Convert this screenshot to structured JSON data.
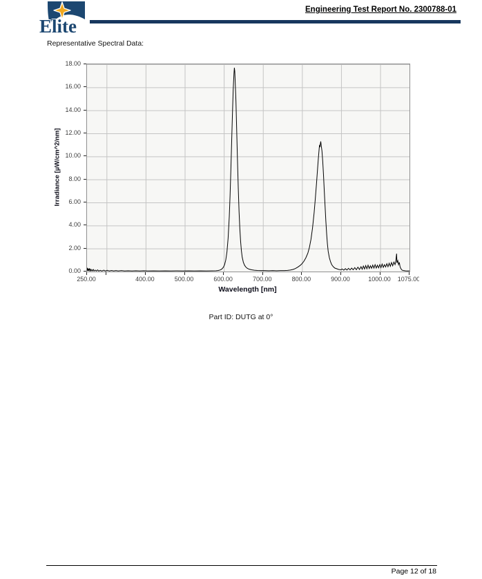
{
  "header": {
    "logo_text": "Elite",
    "report_title": "Engineering Test Report No. 2300788-01"
  },
  "section": {
    "label": "Representative Spectral Data:"
  },
  "caption": "Part ID: DUTG at 0°",
  "footer": {
    "page_label": "Page 12 of 18"
  },
  "colors": {
    "header_rule_navy": "#17375e",
    "logo_navy": "#1c4771",
    "star_gold": "#f2a91f",
    "plot_background": "#f7f7f5",
    "plot_border": "#8f8f8f",
    "gridline": "#c4c4c4",
    "curve": "#000000"
  },
  "chart_data": {
    "type": "line",
    "title": "",
    "xlabel": "Wavelength [nm]",
    "ylabel": "Irradiance [µW/cm^2/nm]",
    "xlim": [
      250,
      1075
    ],
    "ylim": [
      0,
      18
    ],
    "grid": true,
    "legend": "none",
    "x_ticks": [
      {
        "value": 250,
        "label": "250.00"
      },
      {
        "value": 300,
        "label": ""
      },
      {
        "value": 400,
        "label": "400.00"
      },
      {
        "value": 500,
        "label": "500.00"
      },
      {
        "value": 600,
        "label": "600.00"
      },
      {
        "value": 700,
        "label": "700.00"
      },
      {
        "value": 800,
        "label": "800.00"
      },
      {
        "value": 900,
        "label": "900.00"
      },
      {
        "value": 1000,
        "label": "1000.00"
      },
      {
        "value": 1075,
        "label": "1075.00"
      }
    ],
    "x_gridlines": [
      300,
      400,
      500,
      600,
      700,
      800,
      900,
      1000
    ],
    "y_ticks": [
      {
        "value": 18,
        "label": "18.00"
      },
      {
        "value": 16,
        "label": "16.00"
      },
      {
        "value": 14,
        "label": "14.00"
      },
      {
        "value": 12,
        "label": "12.00"
      },
      {
        "value": 10,
        "label": "10.00"
      },
      {
        "value": 8,
        "label": "8.00"
      },
      {
        "value": 6,
        "label": "6.00"
      },
      {
        "value": 4,
        "label": "4.00"
      },
      {
        "value": 2,
        "label": "2.00"
      },
      {
        "value": 0,
        "label": "0.00"
      }
    ],
    "series": [
      {
        "name": "irradiance-spectrum",
        "points": [
          [
            250,
            0.05
          ],
          [
            251,
            0.32
          ],
          [
            252,
            0.08
          ],
          [
            253,
            0.25
          ],
          [
            254,
            0.06
          ],
          [
            256,
            0.28
          ],
          [
            257,
            0.07
          ],
          [
            259,
            0.2
          ],
          [
            260,
            0.06
          ],
          [
            262,
            0.15
          ],
          [
            264,
            0.06
          ],
          [
            266,
            0.18
          ],
          [
            268,
            0.06
          ],
          [
            271,
            0.12
          ],
          [
            274,
            0.05
          ],
          [
            277,
            0.14
          ],
          [
            280,
            0.05
          ],
          [
            284,
            0.1
          ],
          [
            288,
            0.05
          ],
          [
            293,
            0.12
          ],
          [
            297,
            0.05
          ],
          [
            302,
            0.1
          ],
          [
            307,
            0.05
          ],
          [
            313,
            0.09
          ],
          [
            318,
            0.05
          ],
          [
            324,
            0.08
          ],
          [
            330,
            0.05
          ],
          [
            338,
            0.08
          ],
          [
            346,
            0.05
          ],
          [
            355,
            0.07
          ],
          [
            365,
            0.05
          ],
          [
            375,
            0.07
          ],
          [
            385,
            0.05
          ],
          [
            395,
            0.07
          ],
          [
            405,
            0.05
          ],
          [
            420,
            0.06
          ],
          [
            435,
            0.05
          ],
          [
            450,
            0.06
          ],
          [
            465,
            0.05
          ],
          [
            480,
            0.06
          ],
          [
            495,
            0.05
          ],
          [
            510,
            0.06
          ],
          [
            525,
            0.05
          ],
          [
            540,
            0.06
          ],
          [
            555,
            0.05
          ],
          [
            570,
            0.06
          ],
          [
            580,
            0.07
          ],
          [
            586,
            0.09
          ],
          [
            591,
            0.14
          ],
          [
            595,
            0.22
          ],
          [
            599,
            0.38
          ],
          [
            602,
            0.6
          ],
          [
            605,
            1.0
          ],
          [
            608,
            1.7
          ],
          [
            611,
            2.9
          ],
          [
            614,
            4.8
          ],
          [
            616,
            6.6
          ],
          [
            618,
            8.8
          ],
          [
            620,
            11.2
          ],
          [
            622,
            13.6
          ],
          [
            624,
            15.8
          ],
          [
            626,
            17.2
          ],
          [
            627,
            17.7
          ],
          [
            628,
            17.4
          ],
          [
            629,
            16.6
          ],
          [
            631,
            14.8
          ],
          [
            633,
            12.2
          ],
          [
            635,
            9.6
          ],
          [
            637,
            7.2
          ],
          [
            639,
            5.2
          ],
          [
            641,
            3.7
          ],
          [
            643,
            2.6
          ],
          [
            645,
            1.8
          ],
          [
            647,
            1.25
          ],
          [
            650,
            0.8
          ],
          [
            653,
            0.55
          ],
          [
            656,
            0.4
          ],
          [
            660,
            0.28
          ],
          [
            665,
            0.2
          ],
          [
            671,
            0.15
          ],
          [
            678,
            0.11
          ],
          [
            686,
            0.09
          ],
          [
            695,
            0.08
          ],
          [
            705,
            0.08
          ],
          [
            715,
            0.07
          ],
          [
            725,
            0.08
          ],
          [
            735,
            0.07
          ],
          [
            745,
            0.08
          ],
          [
            755,
            0.08
          ],
          [
            763,
            0.1
          ],
          [
            770,
            0.13
          ],
          [
            777,
            0.18
          ],
          [
            783,
            0.26
          ],
          [
            789,
            0.38
          ],
          [
            795,
            0.52
          ],
          [
            800,
            0.68
          ],
          [
            805,
            0.9
          ],
          [
            810,
            1.2
          ],
          [
            815,
            1.6
          ],
          [
            819,
            2.1
          ],
          [
            823,
            2.8
          ],
          [
            827,
            3.8
          ],
          [
            831,
            5.1
          ],
          [
            834,
            6.3
          ],
          [
            837,
            7.6
          ],
          [
            840,
            9.0
          ],
          [
            842,
            9.9
          ],
          [
            844,
            10.7
          ],
          [
            845,
            11.0
          ],
          [
            846,
            10.8
          ],
          [
            847,
            11.1
          ],
          [
            848,
            11.3
          ],
          [
            849,
            11.0
          ],
          [
            851,
            10.5
          ],
          [
            853,
            9.6
          ],
          [
            855,
            8.4
          ],
          [
            857,
            7.0
          ],
          [
            859,
            5.7
          ],
          [
            861,
            4.4
          ],
          [
            863,
            3.3
          ],
          [
            865,
            2.4
          ],
          [
            867,
            1.75
          ],
          [
            870,
            1.2
          ],
          [
            873,
            0.85
          ],
          [
            876,
            0.6
          ],
          [
            880,
            0.42
          ],
          [
            884,
            0.3
          ],
          [
            889,
            0.24
          ],
          [
            894,
            0.18
          ],
          [
            899,
            0.15
          ],
          [
            903,
            0.22
          ],
          [
            907,
            0.12
          ],
          [
            911,
            0.25
          ],
          [
            915,
            0.13
          ],
          [
            919,
            0.28
          ],
          [
            923,
            0.14
          ],
          [
            927,
            0.3
          ],
          [
            931,
            0.15
          ],
          [
            935,
            0.34
          ],
          [
            939,
            0.16
          ],
          [
            943,
            0.38
          ],
          [
            947,
            0.18
          ],
          [
            951,
            0.42
          ],
          [
            954,
            0.2
          ],
          [
            957,
            0.48
          ],
          [
            960,
            0.22
          ],
          [
            963,
            0.52
          ],
          [
            966,
            0.24
          ],
          [
            969,
            0.55
          ],
          [
            972,
            0.26
          ],
          [
            975,
            0.5
          ],
          [
            978,
            0.28
          ],
          [
            981,
            0.56
          ],
          [
            984,
            0.3
          ],
          [
            987,
            0.6
          ],
          [
            990,
            0.3
          ],
          [
            993,
            0.55
          ],
          [
            996,
            0.32
          ],
          [
            999,
            0.6
          ],
          [
            1002,
            0.34
          ],
          [
            1005,
            0.65
          ],
          [
            1008,
            0.36
          ],
          [
            1011,
            0.6
          ],
          [
            1014,
            0.4
          ],
          [
            1017,
            0.68
          ],
          [
            1020,
            0.42
          ],
          [
            1023,
            0.72
          ],
          [
            1026,
            0.45
          ],
          [
            1029,
            0.78
          ],
          [
            1032,
            0.5
          ],
          [
            1035,
            0.82
          ],
          [
            1038,
            0.6
          ],
          [
            1040,
            0.9
          ],
          [
            1042,
            1.55
          ],
          [
            1043,
            0.75
          ],
          [
            1045,
            0.95
          ],
          [
            1047,
            0.6
          ],
          [
            1049,
            0.8
          ],
          [
            1051,
            0.4
          ],
          [
            1053,
            0.25
          ],
          [
            1056,
            0.12
          ],
          [
            1060,
            0.08
          ],
          [
            1065,
            0.06
          ],
          [
            1070,
            0.05
          ],
          [
            1075,
            0.05
          ]
        ]
      }
    ]
  }
}
